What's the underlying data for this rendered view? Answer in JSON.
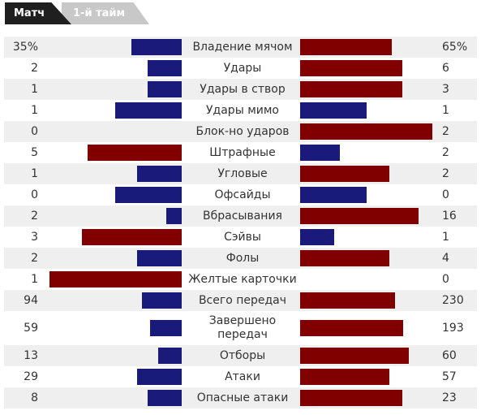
{
  "tabs": [
    {
      "label": "Матч",
      "active": true
    },
    {
      "label": "1-й тайм",
      "active": false
    }
  ],
  "colors": {
    "blue": "#1a1a7a",
    "red": "#800000",
    "shade": "#efefef"
  },
  "stats": [
    {
      "label": "Владение мячом",
      "left": "35%",
      "right": "65%",
      "left_color": "blue",
      "right_color": "red",
      "left_fill": 0.284,
      "right_fill": 0.517
    },
    {
      "label": "Удары",
      "left": "2",
      "right": "6",
      "left_color": "blue",
      "right_color": "red",
      "left_fill": 0.193,
      "right_fill": 0.574
    },
    {
      "label": "Удары в створ",
      "left": "1",
      "right": "3",
      "left_color": "blue",
      "right_color": "red",
      "left_fill": 0.193,
      "right_fill": 0.574
    },
    {
      "label": "Удары мимо",
      "left": "1",
      "right": "1",
      "left_color": "blue",
      "right_color": "blue",
      "left_fill": 0.375,
      "right_fill": 0.375
    },
    {
      "label": "Блок-но ударов",
      "left": "0",
      "right": "2",
      "left_color": "blue",
      "right_color": "red",
      "left_fill": 0.0,
      "right_fill": 0.744
    },
    {
      "label": "Штрафные",
      "left": "5",
      "right": "2",
      "left_color": "red",
      "right_color": "blue",
      "left_fill": 0.528,
      "right_fill": 0.222
    },
    {
      "label": "Угловые",
      "left": "1",
      "right": "2",
      "left_color": "blue",
      "right_color": "red",
      "left_fill": 0.25,
      "right_fill": 0.5
    },
    {
      "label": "Офсайды",
      "left": "0",
      "right": "0",
      "left_color": "blue",
      "right_color": "blue",
      "left_fill": 0.375,
      "right_fill": 0.375
    },
    {
      "label": "Вбрасывания",
      "left": "2",
      "right": "16",
      "left_color": "blue",
      "right_color": "red",
      "left_fill": 0.085,
      "right_fill": 0.665
    },
    {
      "label": "Сэйвы",
      "left": "3",
      "right": "1",
      "left_color": "red",
      "right_color": "blue",
      "left_fill": 0.562,
      "right_fill": 0.193
    },
    {
      "label": "Фолы",
      "left": "2",
      "right": "4",
      "left_color": "blue",
      "right_color": "red",
      "left_fill": 0.25,
      "right_fill": 0.5
    },
    {
      "label": "Желтые карточки",
      "left": "1",
      "right": "0",
      "left_color": "red",
      "right_color": "blue",
      "left_fill": 0.744,
      "right_fill": 0.0
    },
    {
      "label": "Всего передач",
      "left": "94",
      "right": "230",
      "left_color": "blue",
      "right_color": "red",
      "left_fill": 0.222,
      "right_fill": 0.534
    },
    {
      "label": "Завершено передач",
      "left": "59",
      "right": "193",
      "left_color": "blue",
      "right_color": "red",
      "left_fill": 0.176,
      "right_fill": 0.578
    },
    {
      "label": "Отборы",
      "left": "13",
      "right": "60",
      "left_color": "blue",
      "right_color": "red",
      "left_fill": 0.131,
      "right_fill": 0.614
    },
    {
      "label": "Атаки",
      "left": "29",
      "right": "57",
      "left_color": "blue",
      "right_color": "red",
      "left_fill": 0.25,
      "right_fill": 0.5
    },
    {
      "label": "Опасные атаки",
      "left": "8",
      "right": "23",
      "left_color": "blue",
      "right_color": "red",
      "left_fill": 0.193,
      "right_fill": 0.574
    }
  ]
}
